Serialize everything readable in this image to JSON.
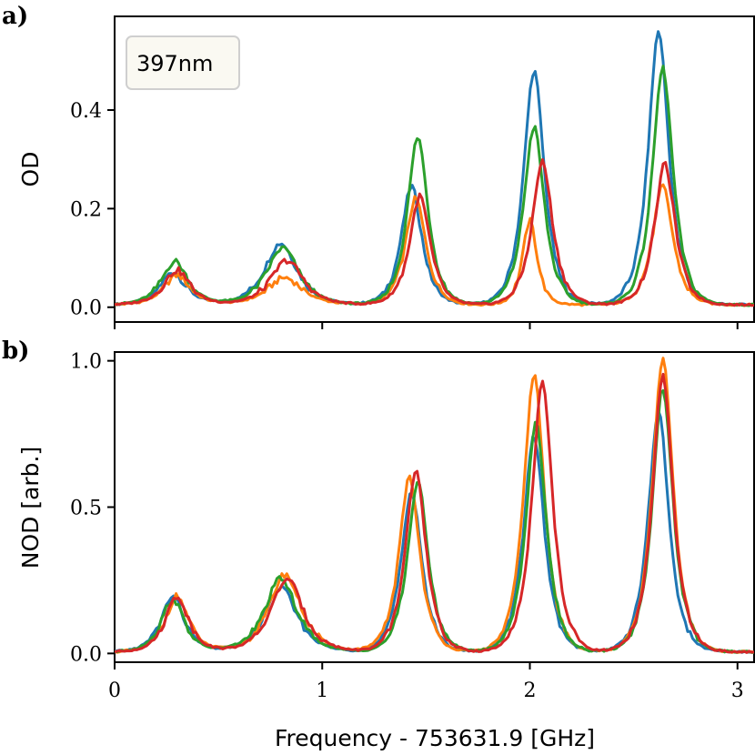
{
  "chart_data": [
    {
      "panel_label": "a)",
      "type": "line",
      "title": "",
      "ylabel": "OD",
      "xlabel": "",
      "xlim": [
        0,
        3.08
      ],
      "ylim": [
        -0.03,
        0.59
      ],
      "yticks": [
        0.0,
        0.2,
        0.4
      ],
      "ytick_labels": [
        "0.0",
        "0.2",
        "0.4"
      ],
      "xticks": [
        0,
        1,
        2,
        3
      ],
      "annotation": "397nm",
      "grid": false,
      "series": [
        {
          "color": "#1f77b4",
          "peaks": [
            [
              0.28,
              0.065,
              0.09
            ],
            [
              0.8,
              0.125,
              0.11
            ],
            [
              1.43,
              0.24,
              0.07
            ],
            [
              2.02,
              0.475,
              0.07
            ],
            [
              2.62,
              0.555,
              0.07
            ]
          ]
        },
        {
          "color": "#ff7f0e",
          "peaks": [
            [
              0.3,
              0.06,
              0.09
            ],
            [
              0.82,
              0.055,
              0.12
            ],
            [
              1.45,
              0.215,
              0.07
            ],
            [
              2.0,
              0.17,
              0.05
            ],
            [
              2.64,
              0.24,
              0.07
            ]
          ]
        },
        {
          "color": "#2ca02c",
          "peaks": [
            [
              0.29,
              0.088,
              0.09
            ],
            [
              0.81,
              0.115,
              0.11
            ],
            [
              1.46,
              0.34,
              0.07
            ],
            [
              2.02,
              0.36,
              0.07
            ],
            [
              2.64,
              0.48,
              0.07
            ]
          ]
        },
        {
          "color": "#d62728",
          "peaks": [
            [
              0.3,
              0.07,
              0.09
            ],
            [
              0.83,
              0.09,
              0.11
            ],
            [
              1.47,
              0.22,
              0.07
            ],
            [
              2.06,
              0.29,
              0.07
            ],
            [
              2.65,
              0.285,
              0.07
            ]
          ]
        }
      ]
    },
    {
      "panel_label": "b)",
      "type": "line",
      "title": "",
      "ylabel": "NOD [arb.]",
      "xlabel": "Frequency - 753631.9 [GHz]",
      "xlim": [
        0,
        3.08
      ],
      "ylim": [
        -0.03,
        1.03
      ],
      "yticks": [
        0.0,
        0.5,
        1.0
      ],
      "ytick_labels": [
        "0.0",
        "0.5",
        "1.0"
      ],
      "xticks": [
        0,
        1,
        2,
        3
      ],
      "xtick_labels": [
        "0",
        "1",
        "2",
        "3"
      ],
      "grid": false,
      "series": [
        {
          "color": "#1f77b4",
          "peaks": [
            [
              0.28,
              0.19,
              0.08
            ],
            [
              0.8,
              0.22,
              0.11
            ],
            [
              1.43,
              0.55,
              0.07
            ],
            [
              2.02,
              0.74,
              0.07
            ],
            [
              2.62,
              0.82,
              0.07
            ]
          ]
        },
        {
          "color": "#ff7f0e",
          "peaks": [
            [
              0.3,
              0.19,
              0.08
            ],
            [
              0.82,
              0.265,
              0.11
            ],
            [
              1.42,
              0.6,
              0.07
            ],
            [
              2.02,
              0.95,
              0.07
            ],
            [
              2.64,
              1.0,
              0.07
            ]
          ]
        },
        {
          "color": "#2ca02c",
          "peaks": [
            [
              0.28,
              0.18,
              0.08
            ],
            [
              0.8,
              0.25,
              0.11
            ],
            [
              1.46,
              0.58,
              0.07
            ],
            [
              2.03,
              0.78,
              0.07
            ],
            [
              2.64,
              0.9,
              0.07
            ]
          ]
        },
        {
          "color": "#d62728",
          "peaks": [
            [
              0.3,
              0.19,
              0.08
            ],
            [
              0.83,
              0.25,
              0.11
            ],
            [
              1.45,
              0.62,
              0.07
            ],
            [
              2.06,
              0.92,
              0.07
            ],
            [
              2.64,
              0.94,
              0.07
            ]
          ]
        }
      ]
    }
  ]
}
